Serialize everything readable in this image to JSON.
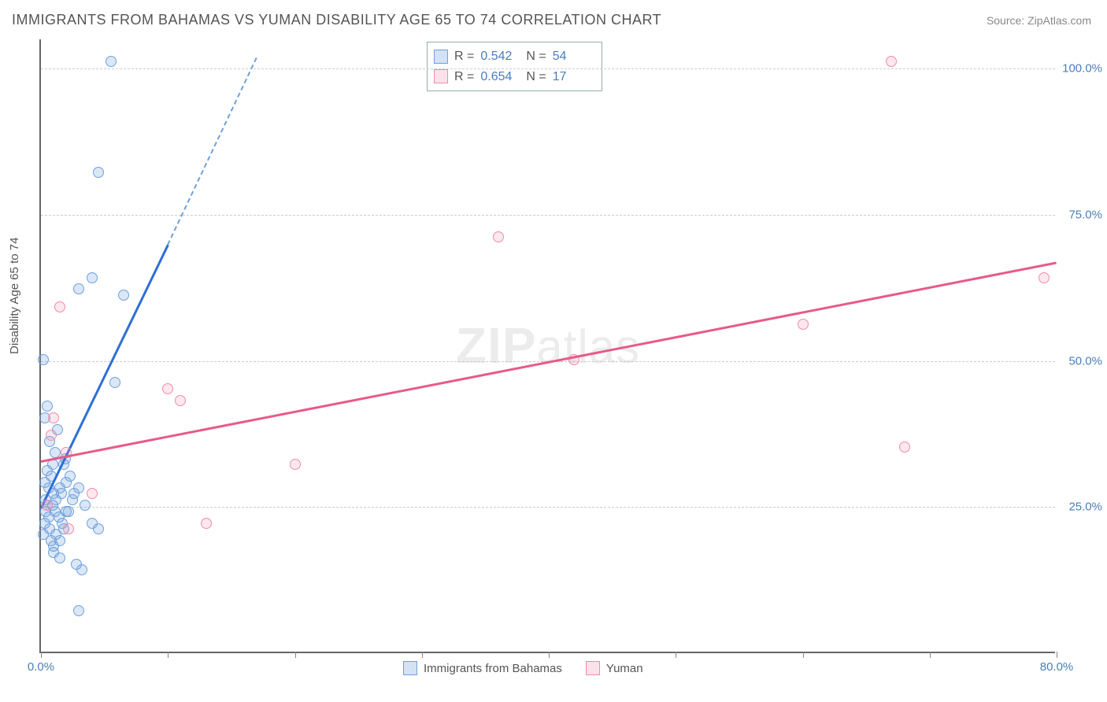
{
  "title": "IMMIGRANTS FROM BAHAMAS VS YUMAN DISABILITY AGE 65 TO 74 CORRELATION CHART",
  "source": "Source: ZipAtlas.com",
  "ylabel": "Disability Age 65 to 74",
  "watermark_bold": "ZIP",
  "watermark_rest": "atlas",
  "chart": {
    "type": "scatter",
    "background_color": "#ffffff",
    "grid_color": "#cccccc",
    "axis_color": "#666666",
    "xlim": [
      0,
      80
    ],
    "ylim": [
      0,
      105
    ],
    "xticks": [
      0,
      10,
      20,
      30,
      40,
      50,
      60,
      70,
      80
    ],
    "xaxis_labels": [
      {
        "value": 0,
        "label": "0.0%"
      },
      {
        "value": 80,
        "label": "80.0%"
      }
    ],
    "yaxis_labels": [
      {
        "value": 25,
        "label": "25.0%"
      },
      {
        "value": 50,
        "label": "50.0%"
      },
      {
        "value": 75,
        "label": "75.0%"
      },
      {
        "value": 100,
        "label": "100.0%"
      }
    ],
    "gridlines_y": [
      25,
      50,
      75,
      100
    ],
    "series": [
      {
        "name": "Immigrants from Bahamas",
        "color_fill": "rgba(110,160,220,0.25)",
        "color_stroke": "#6ea0dc",
        "marker_size": 14,
        "points": [
          {
            "x": 0.5,
            "y": 25
          },
          {
            "x": 1.0,
            "y": 27
          },
          {
            "x": 0.3,
            "y": 22
          },
          {
            "x": 1.5,
            "y": 28
          },
          {
            "x": 0.8,
            "y": 30
          },
          {
            "x": 1.2,
            "y": 26
          },
          {
            "x": 0.4,
            "y": 24
          },
          {
            "x": 2.0,
            "y": 29
          },
          {
            "x": 0.6,
            "y": 23
          },
          {
            "x": 1.8,
            "y": 21
          },
          {
            "x": 0.2,
            "y": 20
          },
          {
            "x": 1.0,
            "y": 18
          },
          {
            "x": 2.5,
            "y": 26
          },
          {
            "x": 3.0,
            "y": 28
          },
          {
            "x": 0.9,
            "y": 32
          },
          {
            "x": 1.1,
            "y": 34
          },
          {
            "x": 0.7,
            "y": 36
          },
          {
            "x": 1.3,
            "y": 38
          },
          {
            "x": 2.2,
            "y": 24
          },
          {
            "x": 3.5,
            "y": 25
          },
          {
            "x": 4.0,
            "y": 22
          },
          {
            "x": 4.5,
            "y": 21
          },
          {
            "x": 1.5,
            "y": 16
          },
          {
            "x": 2.8,
            "y": 15
          },
          {
            "x": 3.2,
            "y": 14
          },
          {
            "x": 0.3,
            "y": 40
          },
          {
            "x": 0.5,
            "y": 42
          },
          {
            "x": 1.8,
            "y": 32
          },
          {
            "x": 0.2,
            "y": 50
          },
          {
            "x": 3.0,
            "y": 62
          },
          {
            "x": 4.0,
            "y": 64
          },
          {
            "x": 6.5,
            "y": 61
          },
          {
            "x": 5.8,
            "y": 46
          },
          {
            "x": 4.5,
            "y": 82
          },
          {
            "x": 5.5,
            "y": 101
          },
          {
            "x": 3.0,
            "y": 7
          },
          {
            "x": 0.8,
            "y": 19
          },
          {
            "x": 1.0,
            "y": 17
          },
          {
            "x": 1.4,
            "y": 23
          },
          {
            "x": 0.6,
            "y": 28
          },
          {
            "x": 2.3,
            "y": 30
          },
          {
            "x": 1.6,
            "y": 27
          },
          {
            "x": 0.4,
            "y": 26
          },
          {
            "x": 0.9,
            "y": 25
          },
          {
            "x": 2.0,
            "y": 24
          },
          {
            "x": 1.7,
            "y": 22
          },
          {
            "x": 1.2,
            "y": 20
          },
          {
            "x": 0.5,
            "y": 31
          },
          {
            "x": 1.9,
            "y": 33
          },
          {
            "x": 0.3,
            "y": 29
          },
          {
            "x": 2.6,
            "y": 27
          },
          {
            "x": 1.1,
            "y": 24
          },
          {
            "x": 0.7,
            "y": 21
          },
          {
            "x": 1.5,
            "y": 19
          }
        ],
        "trendline": {
          "color": "#2e6fd6",
          "width": 2.5,
          "x1": 0,
          "y1": 25,
          "x2": 10,
          "y2": 70,
          "dash_x1": 10,
          "dash_y1": 70,
          "dash_x2": 17,
          "dash_y2": 102
        }
      },
      {
        "name": "Yuman",
        "color_fill": "rgba(240,140,170,0.2)",
        "color_stroke": "#f08caa",
        "marker_size": 14,
        "points": [
          {
            "x": 0.5,
            "y": 25
          },
          {
            "x": 2.0,
            "y": 34
          },
          {
            "x": 1.0,
            "y": 40
          },
          {
            "x": 1.5,
            "y": 59
          },
          {
            "x": 0.8,
            "y": 37
          },
          {
            "x": 4.0,
            "y": 27
          },
          {
            "x": 2.2,
            "y": 21
          },
          {
            "x": 10.0,
            "y": 45
          },
          {
            "x": 11.0,
            "y": 43
          },
          {
            "x": 20.0,
            "y": 32
          },
          {
            "x": 13.0,
            "y": 22
          },
          {
            "x": 42.0,
            "y": 50
          },
          {
            "x": 36.0,
            "y": 71
          },
          {
            "x": 60.0,
            "y": 56
          },
          {
            "x": 68.0,
            "y": 35
          },
          {
            "x": 67.0,
            "y": 101
          },
          {
            "x": 79.0,
            "y": 64
          }
        ],
        "trendline": {
          "color": "#e75a8a",
          "width": 2.5,
          "x1": 0,
          "y1": 33,
          "x2": 80,
          "y2": 67
        }
      }
    ]
  },
  "stats": [
    {
      "r": "0.542",
      "n": "54",
      "swatch_class": "swatch-blue"
    },
    {
      "r": "0.654",
      "n": "17",
      "swatch_class": "swatch-pink"
    }
  ],
  "legend": [
    {
      "label": "Immigrants from Bahamas",
      "swatch_class": "swatch-blue"
    },
    {
      "label": "Yuman",
      "swatch_class": "swatch-pink"
    }
  ],
  "label_r": "R =",
  "label_n": "N ="
}
